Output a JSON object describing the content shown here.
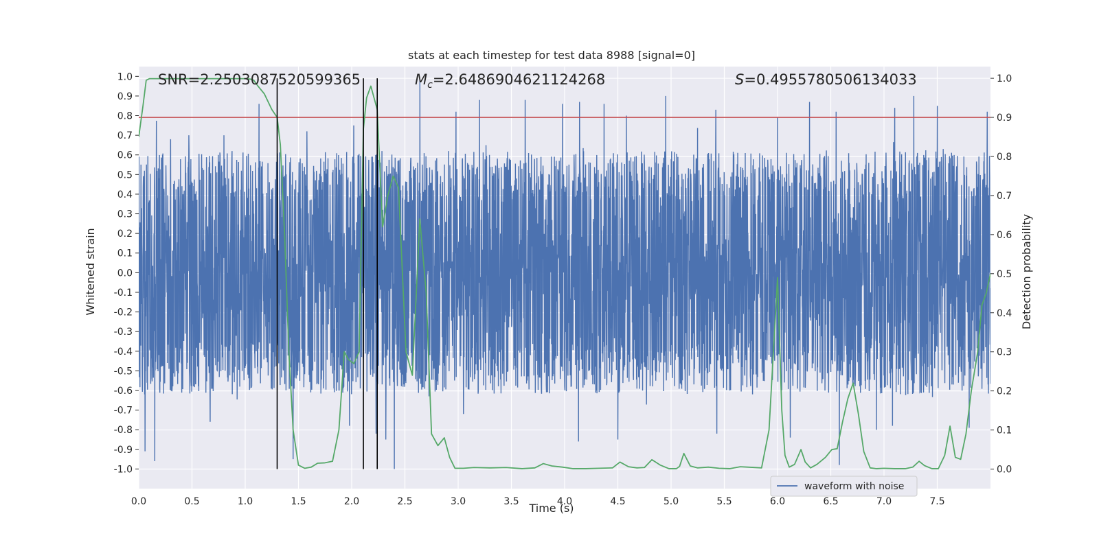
{
  "chart_data": {
    "type": "line",
    "title": "stats at each timestep for test data 8988 [signal=0]",
    "xlabel": "Time (s)",
    "ylabel_left": "Whitened strain",
    "ylabel_right": "Detection probability",
    "xlim": [
      0.0,
      8.0
    ],
    "ylim_left": [
      -1.1,
      1.05
    ],
    "ylim_right": [
      -0.05,
      1.03
    ],
    "x_ticks": [
      0.0,
      0.5,
      1.0,
      1.5,
      2.0,
      2.5,
      3.0,
      3.5,
      4.0,
      4.5,
      5.0,
      5.5,
      6.0,
      6.5,
      7.0,
      7.5
    ],
    "x_tick_labels": [
      "0.0",
      "0.5",
      "1.0",
      "1.5",
      "2.0",
      "2.5",
      "3.0",
      "3.5",
      "4.0",
      "4.5",
      "5.0",
      "5.5",
      "6.0",
      "6.5",
      "7.0",
      "7.5"
    ],
    "y_left_ticks": [
      1.0,
      0.9,
      0.8,
      0.7,
      0.6,
      0.5,
      0.4,
      0.3,
      0.2,
      0.1,
      0.0,
      -0.1,
      -0.2,
      -0.3,
      -0.4,
      -0.5,
      -0.6,
      -0.7,
      -0.8,
      -0.9,
      -1.0
    ],
    "y_left_tick_labels": [
      "1.0",
      "0.9",
      "0.8",
      "0.7",
      "0.6",
      "0.5",
      "0.4",
      "0.3",
      "0.2",
      "0.1",
      "0.0",
      "-0.1",
      "-0.2",
      "-0.3",
      "-0.4",
      "-0.5",
      "-0.6",
      "-0.7",
      "-0.8",
      "-0.9",
      "-1.0"
    ],
    "y_right_ticks": [
      1.0,
      0.9,
      0.8,
      0.7,
      0.6,
      0.5,
      0.4,
      0.3,
      0.2,
      0.1,
      0.0
    ],
    "y_right_tick_labels": [
      "1.0",
      "0.9",
      "0.8",
      "0.7",
      "0.6",
      "0.5",
      "0.4",
      "0.3",
      "0.2",
      "0.1",
      "0.0"
    ],
    "annotations": {
      "snr": "SNR=2.2503087520599365",
      "mc_symbol": "M",
      "mc_subscript": "c",
      "mc_value": "=2.6486904621124268",
      "s_symbol": "S",
      "s_value": "=0.4955780506134033"
    },
    "threshold": {
      "value_right_axis": 0.9,
      "color": "#c44e52"
    },
    "vertical_markers": [
      1.3,
      2.11,
      2.24
    ],
    "waveform": {
      "name": "waveform with noise",
      "color": "#4c72b0",
      "duration_s": 8.0,
      "band_envelope": 0.36,
      "noise_seed": 8988,
      "upper_extremes": [
        {
          "t": 0.06,
          "v": 0.8
        },
        {
          "t": 0.3,
          "v": 0.68
        },
        {
          "t": 0.47,
          "v": 0.7
        },
        {
          "t": 0.8,
          "v": 0.7
        },
        {
          "t": 1.13,
          "v": 0.86
        },
        {
          "t": 1.58,
          "v": 0.72
        },
        {
          "t": 2.02,
          "v": 0.75
        },
        {
          "t": 2.64,
          "v": 0.98
        },
        {
          "t": 2.98,
          "v": 0.82
        },
        {
          "t": 3.2,
          "v": 0.88
        },
        {
          "t": 3.63,
          "v": 0.88
        },
        {
          "t": 3.98,
          "v": 0.86
        },
        {
          "t": 4.14,
          "v": 0.87
        },
        {
          "t": 4.37,
          "v": 0.86
        },
        {
          "t": 4.58,
          "v": 0.8
        },
        {
          "t": 4.95,
          "v": 0.9
        },
        {
          "t": 5.42,
          "v": 0.83
        },
        {
          "t": 6.0,
          "v": 0.79
        },
        {
          "t": 6.3,
          "v": 0.87
        },
        {
          "t": 6.55,
          "v": 0.82
        },
        {
          "t": 7.1,
          "v": 0.84
        },
        {
          "t": 7.28,
          "v": 0.9
        },
        {
          "t": 7.5,
          "v": 0.85
        },
        {
          "t": 7.97,
          "v": 0.82
        }
      ],
      "lower_extremes": [
        {
          "t": 0.06,
          "v": -0.91
        },
        {
          "t": 0.15,
          "v": -0.96
        },
        {
          "t": 0.67,
          "v": -0.76
        },
        {
          "t": 1.45,
          "v": -0.95
        },
        {
          "t": 1.98,
          "v": -0.78
        },
        {
          "t": 2.23,
          "v": -0.82
        },
        {
          "t": 2.4,
          "v": -1.0
        },
        {
          "t": 2.32,
          "v": -0.85
        },
        {
          "t": 3.05,
          "v": -0.72
        },
        {
          "t": 4.13,
          "v": -0.86
        },
        {
          "t": 4.5,
          "v": -0.85
        },
        {
          "t": 5.43,
          "v": -0.82
        },
        {
          "t": 6.12,
          "v": -0.84
        },
        {
          "t": 6.58,
          "v": -0.98
        },
        {
          "t": 6.93,
          "v": -0.8
        },
        {
          "t": 7.08,
          "v": -0.78
        },
        {
          "t": 7.8,
          "v": -0.79
        }
      ]
    },
    "detection_probability": {
      "color": "#55a868",
      "x": [
        0.0,
        0.04,
        0.07,
        0.1,
        0.2,
        0.4,
        0.6,
        0.8,
        1.0,
        1.05,
        1.08,
        1.12,
        1.18,
        1.25,
        1.3,
        1.33,
        1.37,
        1.41,
        1.45,
        1.5,
        1.56,
        1.62,
        1.68,
        1.75,
        1.82,
        1.88,
        1.93,
        1.97,
        2.02,
        2.07,
        2.11,
        2.14,
        2.18,
        2.21,
        2.24,
        2.29,
        2.34,
        2.39,
        2.44,
        2.51,
        2.57,
        2.64,
        2.7,
        2.75,
        2.81,
        2.87,
        2.92,
        2.97,
        3.05,
        3.15,
        3.3,
        3.45,
        3.6,
        3.72,
        3.8,
        3.88,
        3.98,
        4.08,
        4.2,
        4.32,
        4.45,
        4.52,
        4.6,
        4.68,
        4.75,
        4.82,
        4.9,
        4.98,
        5.05,
        5.08,
        5.12,
        5.18,
        5.25,
        5.35,
        5.45,
        5.55,
        5.65,
        5.72,
        5.85,
        5.92,
        6.0,
        6.04,
        6.07,
        6.11,
        6.16,
        6.22,
        6.26,
        6.31,
        6.37,
        6.45,
        6.51,
        6.56,
        6.61,
        6.66,
        6.71,
        6.76,
        6.81,
        6.87,
        6.93,
        7.0,
        7.1,
        7.2,
        7.27,
        7.33,
        7.38,
        7.45,
        7.51,
        7.57,
        7.62,
        7.67,
        7.72,
        7.77,
        7.82,
        7.88,
        7.92,
        7.96,
        8.0
      ],
      "y": [
        0.85,
        0.93,
        0.995,
        0.999,
        0.999,
        0.999,
        0.999,
        0.999,
        0.999,
        0.998,
        0.995,
        0.98,
        0.96,
        0.92,
        0.9,
        0.83,
        0.6,
        0.3,
        0.1,
        0.01,
        0.002,
        0.005,
        0.015,
        0.016,
        0.02,
        0.1,
        0.3,
        0.28,
        0.27,
        0.3,
        0.87,
        0.95,
        0.98,
        0.95,
        0.92,
        0.62,
        0.7,
        0.75,
        0.72,
        0.3,
        0.24,
        0.64,
        0.45,
        0.09,
        0.06,
        0.08,
        0.03,
        0.002,
        0.002,
        0.004,
        0.003,
        0.004,
        0.001,
        0.003,
        0.014,
        0.008,
        0.005,
        0.001,
        0.001,
        0.002,
        0.003,
        0.018,
        0.006,
        0.003,
        0.004,
        0.024,
        0.01,
        0.001,
        0.001,
        0.007,
        0.04,
        0.008,
        0.003,
        0.005,
        0.002,
        0.001,
        0.006,
        0.005,
        0.003,
        0.1,
        0.49,
        0.15,
        0.035,
        0.005,
        0.012,
        0.05,
        0.018,
        0.003,
        0.012,
        0.03,
        0.05,
        0.052,
        0.12,
        0.18,
        0.22,
        0.14,
        0.045,
        0.003,
        0.001,
        0.002,
        0.001,
        0.001,
        0.005,
        0.02,
        0.009,
        0.001,
        0.001,
        0.035,
        0.11,
        0.03,
        0.025,
        0.09,
        0.2,
        0.3,
        0.42,
        0.45,
        0.5
      ]
    },
    "legend": {
      "label": "waveform with noise",
      "placement": "lower-right"
    }
  },
  "colors": {
    "axes_bg": "#eaeaf2",
    "grid": "#ffffff",
    "marker": "#000000"
  }
}
